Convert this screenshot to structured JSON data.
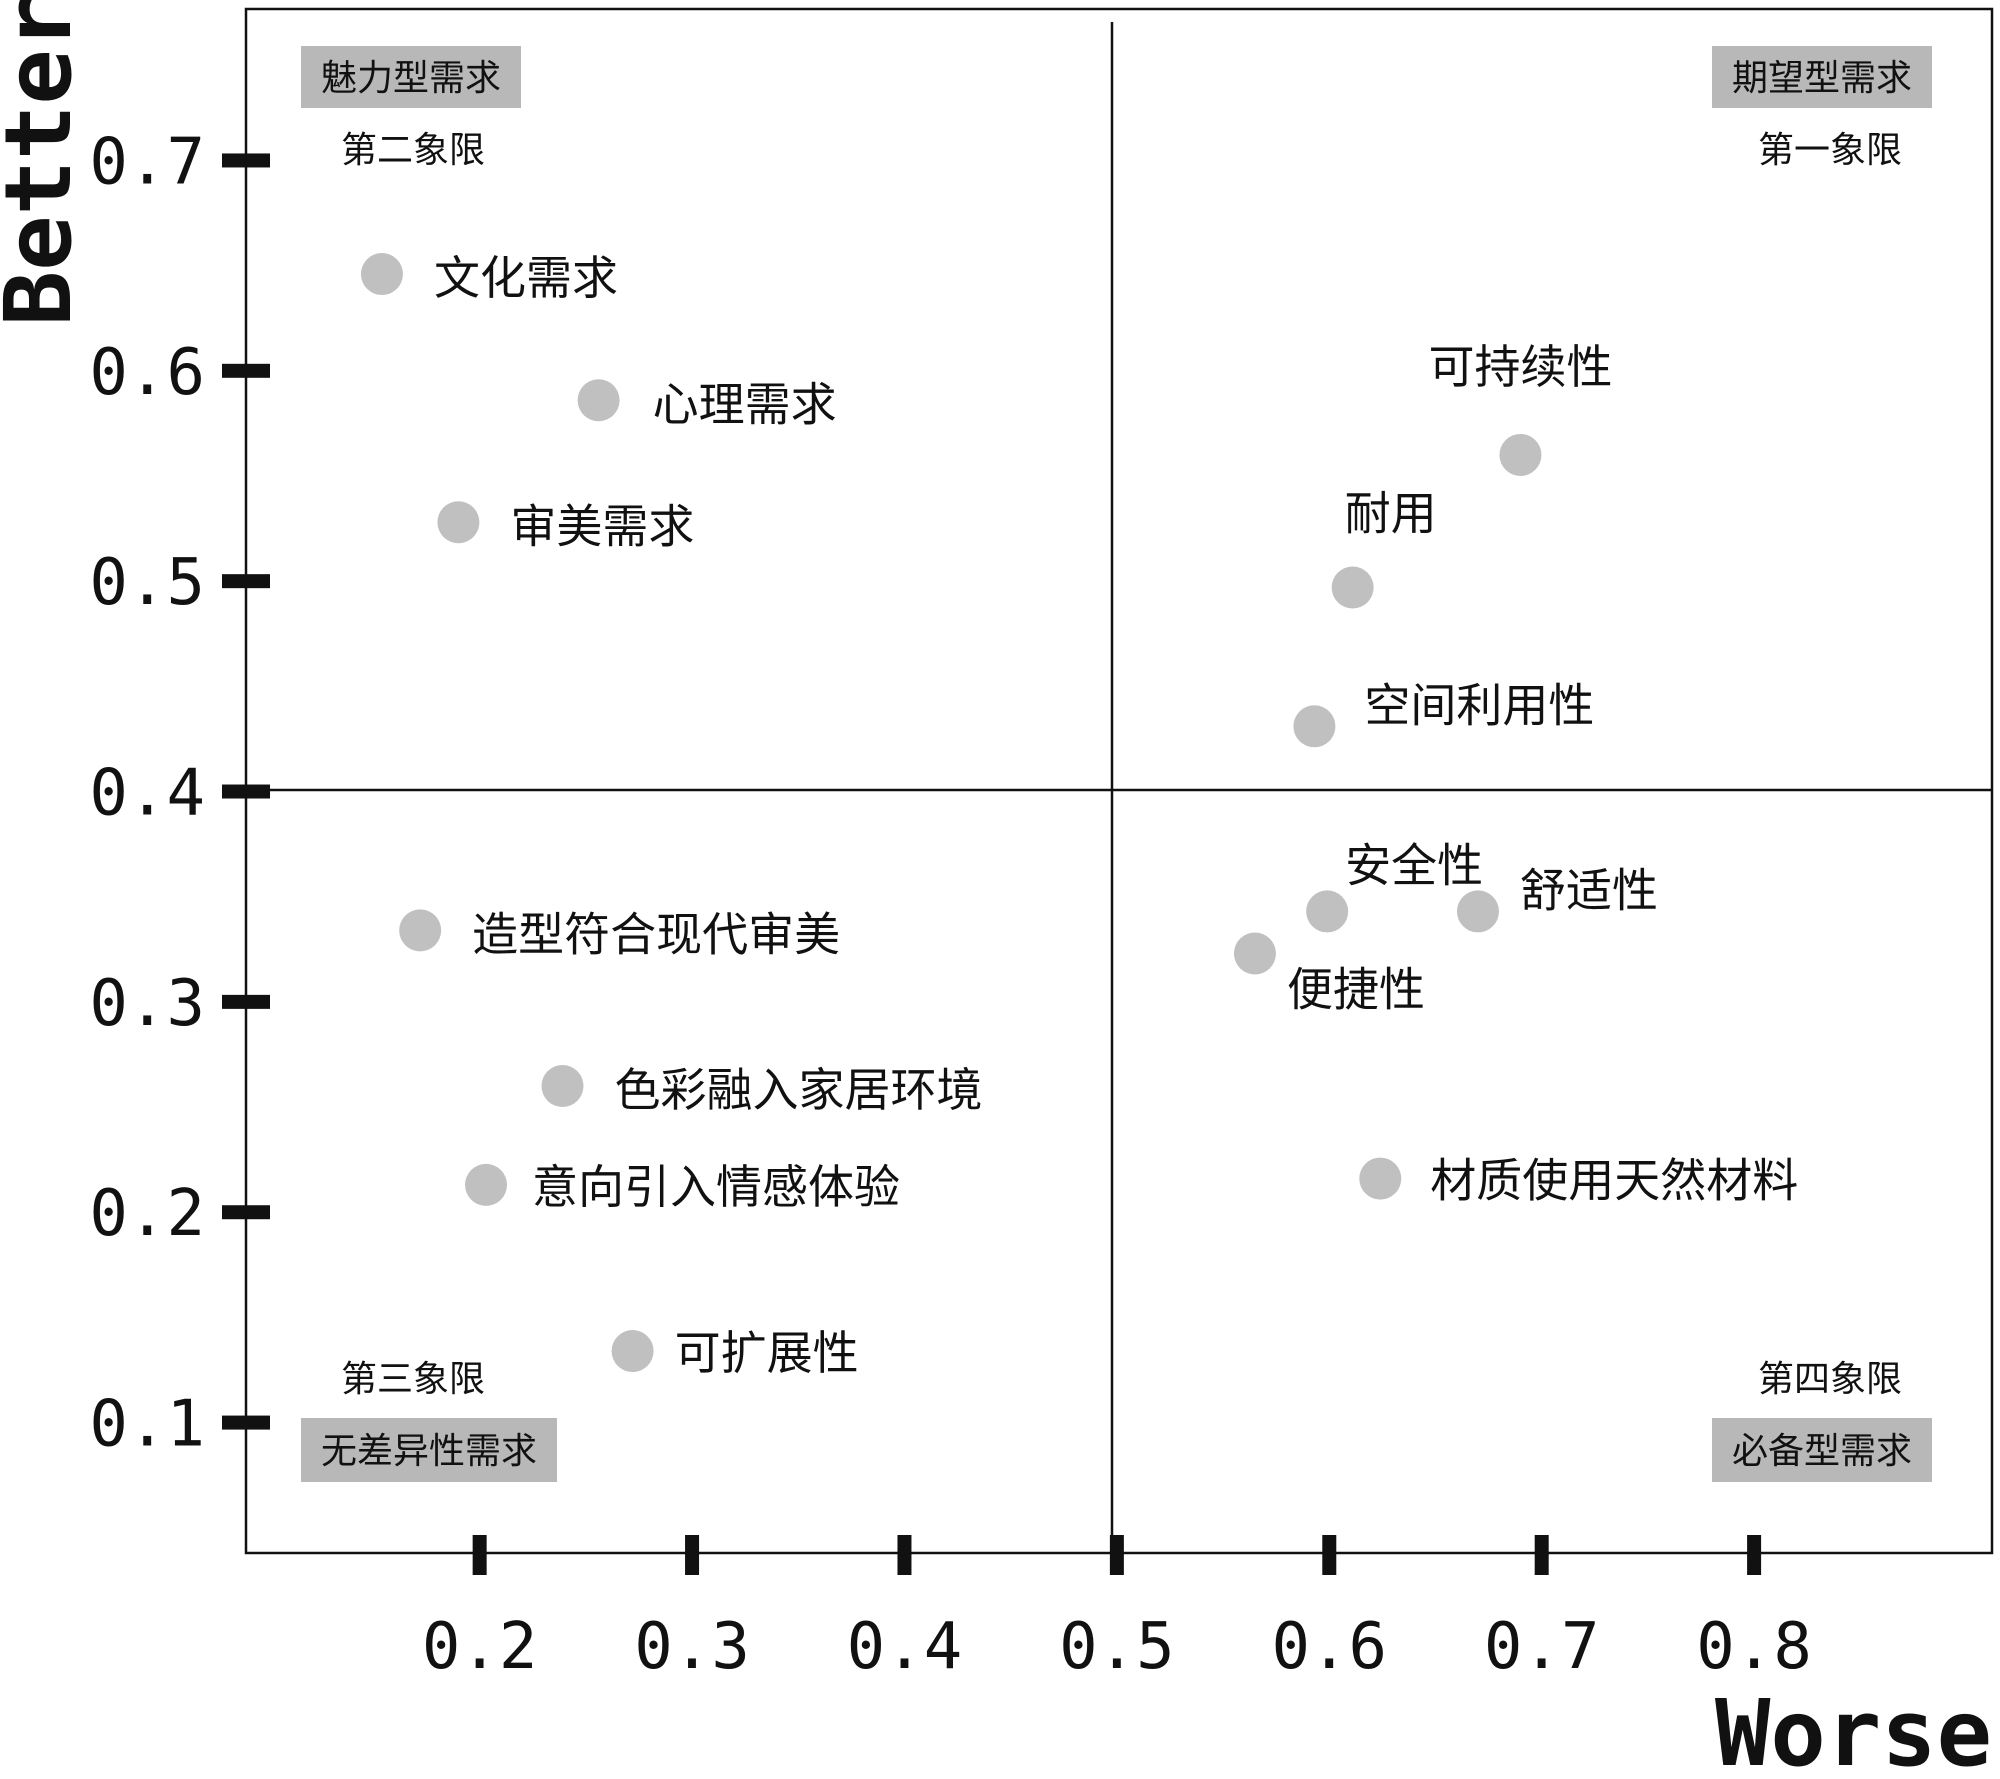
{
  "chart_data": {
    "type": "scatter",
    "xlabel": "Worse",
    "ylabel": "Better",
    "xlim": [
      0.09,
      0.912
    ],
    "ylim": [
      0.038,
      0.772
    ],
    "x_ticks": [
      "0.2",
      "0.3",
      "0.4",
      "0.5",
      "0.6",
      "0.7",
      "0.8"
    ],
    "y_ticks": [
      "0.1",
      "0.2",
      "0.3",
      "0.4",
      "0.5",
      "0.6",
      "0.7"
    ],
    "divider_x": 0.5,
    "divider_y": 0.4,
    "grid": false,
    "point_color": "#c0c0c0",
    "box_color": "#b8b8b8",
    "quadrants": {
      "q1": {
        "category": "期望型需求",
        "name": "第一象限"
      },
      "q2": {
        "category": "魅力型需求",
        "name": "第二象限"
      },
      "q3": {
        "category": "无差异性需求",
        "name": "第三象限"
      },
      "q4": {
        "category": "必备型需求",
        "name": "第四象限"
      }
    },
    "points": [
      {
        "label": "文化需求",
        "x": 0.154,
        "y": 0.646
      },
      {
        "label": "心理需求",
        "x": 0.256,
        "y": 0.586
      },
      {
        "label": "审美需求",
        "x": 0.19,
        "y": 0.528
      },
      {
        "label": "可持续性",
        "x": 0.69,
        "y": 0.56
      },
      {
        "label": "耐用",
        "x": 0.611,
        "y": 0.497
      },
      {
        "label": "空间利用性",
        "x": 0.593,
        "y": 0.431
      },
      {
        "label": "安全性",
        "x": 0.599,
        "y": 0.343
      },
      {
        "label": "舒适性",
        "x": 0.67,
        "y": 0.343
      },
      {
        "label": "便捷性",
        "x": 0.565,
        "y": 0.323
      },
      {
        "label": "材质使用天然材料",
        "x": 0.624,
        "y": 0.216
      },
      {
        "label": "造型符合现代审美",
        "x": 0.172,
        "y": 0.334
      },
      {
        "label": "色彩融入家居环境",
        "x": 0.239,
        "y": 0.26
      },
      {
        "label": "意向引入情感体验",
        "x": 0.203,
        "y": 0.213
      },
      {
        "label": "可扩展性",
        "x": 0.272,
        "y": 0.134
      }
    ]
  }
}
